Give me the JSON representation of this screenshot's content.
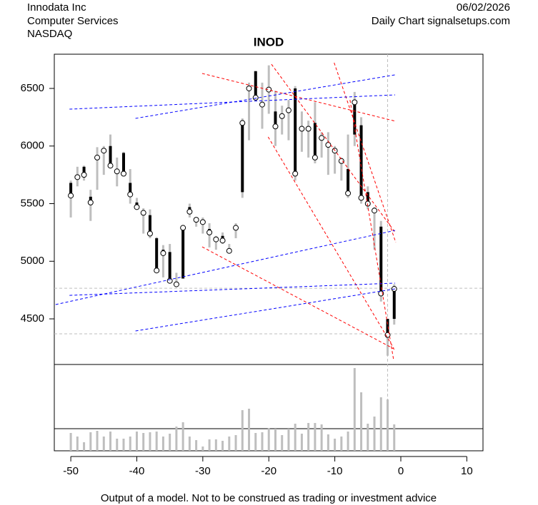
{
  "header": {
    "company": "Innodata Inc",
    "sector": "Computer Services",
    "exchange": "NASDAQ",
    "date": "06/02/2026",
    "source": "Daily Chart signalsetups.com"
  },
  "footer": "Output of a model. Not to be construed as trading or investment advice",
  "chart_data": {
    "type": "candlestick",
    "title": "INOD",
    "x": [
      -50,
      -49,
      -48,
      -47,
      -46,
      -45,
      -44,
      -43,
      -42,
      -41,
      -40,
      -39,
      -38,
      -37,
      -36,
      -35,
      -34,
      -33,
      -32,
      -31,
      -30,
      -29,
      -28,
      -27,
      -26,
      -25,
      -24,
      -23,
      -22,
      -21,
      -20,
      -19,
      -18,
      -17,
      -16,
      -15,
      -14,
      -13,
      -12,
      -11,
      -10,
      -9,
      -8,
      -7,
      -6,
      -5,
      -4,
      -3,
      -2,
      -1
    ],
    "open": [
      5680,
      5720,
      5820,
      5560,
      5920,
      5960,
      6000,
      5780,
      5940,
      5680,
      5510,
      5440,
      5400,
      5200,
      5100,
      5080,
      4800,
      4850,
      5470,
      5360,
      5360,
      5280,
      5200,
      5220,
      5110,
      5300,
      5600,
      6480,
      6650,
      6370,
      6500,
      6300,
      6280,
      6300,
      6500,
      6150,
      6150,
      6200,
      6080,
      6020,
      5950,
      5850,
      5800,
      6100,
      6180,
      5600,
      5450,
      5300,
      4500,
      4500
    ],
    "high": [
      5700,
      5820,
      5830,
      5620,
      5990,
      6000,
      6100,
      5900,
      5950,
      5800,
      5550,
      5460,
      5450,
      5210,
      5140,
      5150,
      4900,
      5310,
      5500,
      5380,
      5380,
      5330,
      5220,
      5250,
      5150,
      5330,
      6240,
      6550,
      6650,
      6550,
      6700,
      6480,
      6350,
      6400,
      6520,
      6300,
      6220,
      6380,
      6120,
      6120,
      6000,
      5900,
      6100,
      6470,
      6250,
      5650,
      5470,
      5350,
      4500,
      4800
    ],
    "low": [
      5380,
      5650,
      5700,
      5350,
      5620,
      5750,
      5840,
      5650,
      5750,
      5500,
      5450,
      5240,
      5200,
      4900,
      4860,
      4820,
      4780,
      4850,
      5380,
      5300,
      5240,
      5120,
      5100,
      5150,
      5080,
      5200,
      5550,
      6050,
      6400,
      6150,
      6280,
      6000,
      6100,
      6050,
      5700,
      5950,
      5900,
      5850,
      5900,
      5750,
      5760,
      5700,
      5550,
      6000,
      5500,
      5450,
      5100,
      4650,
      4180,
      4450
    ],
    "close": [
      5570,
      5730,
      5750,
      5510,
      5900,
      5960,
      5830,
      5780,
      5760,
      5580,
      5470,
      5420,
      5240,
      4920,
      5070,
      4830,
      4800,
      5290,
      5430,
      5360,
      5340,
      5250,
      5190,
      5180,
      5090,
      5290,
      6200,
      6500,
      6420,
      6360,
      6490,
      6170,
      6260,
      6310,
      5760,
      6150,
      6150,
      5900,
      6070,
      6010,
      5960,
      5870,
      5590,
      6380,
      5550,
      5500,
      5440,
      4720,
      4360,
      4760
    ],
    "volume": [
      25,
      20,
      12,
      26,
      28,
      20,
      27,
      17,
      17,
      20,
      27,
      25,
      26,
      27,
      20,
      24,
      34,
      40,
      20,
      15,
      6,
      16,
      16,
      14,
      20,
      22,
      57,
      59,
      25,
      26,
      32,
      31,
      22,
      31,
      38,
      24,
      39,
      39,
      37,
      23,
      17,
      20,
      27,
      116,
      82,
      38,
      48,
      75,
      72,
      37
    ],
    "range_color": "#bebebe",
    "body_color": "#000000",
    "volume_color": "#bebebe",
    "xlim": [
      -52.5,
      12.45
    ],
    "xticks": [
      -50,
      -40,
      -30,
      -20,
      -10,
      0,
      10
    ],
    "ylim": [
      4104,
      6797
    ],
    "yticks": [
      4500,
      5000,
      5500,
      6000,
      6500
    ],
    "volume_lim": [
      0,
      121
    ],
    "hlines": [
      4766,
      4370
    ],
    "vline": -2,
    "guide_color": "#bebebe",
    "trendlines": [
      {
        "color": "#ff0000",
        "x": [
          -30.1,
          -0.76
        ],
        "y": [
          6630,
          6215
        ]
      },
      {
        "color": "#ff0000",
        "x": [
          -19.6,
          -0.76
        ],
        "y": [
          6710,
          5243
        ]
      },
      {
        "color": "#ff0000",
        "x": [
          -10.1,
          -0.76
        ],
        "y": [
          6723,
          5163
        ]
      },
      {
        "color": "#ff0000",
        "x": [
          -20.1,
          -1.08
        ],
        "y": [
          6079,
          4246
        ]
      },
      {
        "color": "#ff0000",
        "x": [
          -7.7,
          -1.08
        ],
        "y": [
          6400,
          4140
        ]
      },
      {
        "color": "#ff0000",
        "x": [
          -30.1,
          -0.87
        ],
        "y": [
          5125,
          4234
        ]
      },
      {
        "color": "#0000ff",
        "x": [
          -50.2,
          -0.87
        ],
        "y": [
          6320,
          6444
        ]
      },
      {
        "color": "#0000ff",
        "x": [
          -40.2,
          -0.87
        ],
        "y": [
          6240,
          6618
        ]
      },
      {
        "color": "#0000ff",
        "x": [
          -52.3,
          -0.87
        ],
        "y": [
          4624,
          5268
        ]
      },
      {
        "color": "#0000ff",
        "x": [
          -50.2,
          -0.87
        ],
        "y": [
          4704,
          4810
        ]
      },
      {
        "color": "#0000ff",
        "x": [
          -40.2,
          -0.87
        ],
        "y": [
          4395,
          4760
        ]
      }
    ]
  }
}
